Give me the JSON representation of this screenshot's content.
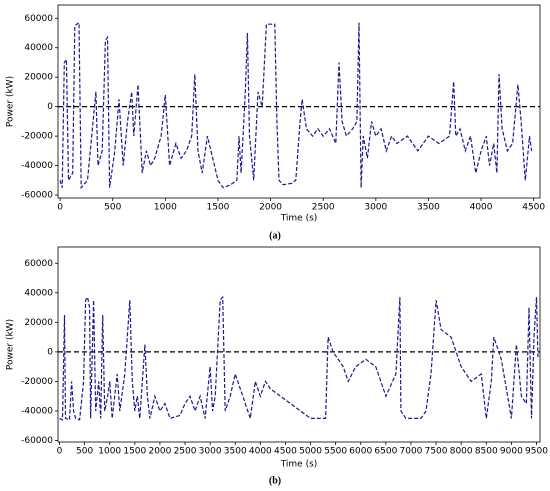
{
  "chart_data": [
    {
      "type": "line",
      "caption": "(a)",
      "xlabel": "Time (s)",
      "ylabel": "Power (kW)",
      "color": "#1a1a8c",
      "hline": 0,
      "xlim": [
        -20,
        4560
      ],
      "xticks": [
        0,
        500,
        1000,
        1500,
        2000,
        2500,
        3000,
        3500,
        4000,
        4500
      ],
      "ylim": [
        -62000,
        69000
      ],
      "yticks": [
        -60000,
        -40000,
        -20000,
        0,
        20000,
        40000,
        60000
      ],
      "x": [
        0,
        20,
        40,
        60,
        80,
        120,
        140,
        180,
        200,
        260,
        300,
        340,
        360,
        400,
        430,
        450,
        470,
        520,
        560,
        600,
        640,
        680,
        700,
        740,
        780,
        820,
        860,
        900,
        960,
        1000,
        1040,
        1100,
        1150,
        1200,
        1250,
        1280,
        1310,
        1350,
        1400,
        1450,
        1500,
        1550,
        1620,
        1680,
        1700,
        1720,
        1760,
        1780,
        1800,
        1840,
        1880,
        1920,
        1960,
        2040,
        2060,
        2080,
        2120,
        2200,
        2240,
        2280,
        2300,
        2340,
        2400,
        2450,
        2500,
        2560,
        2620,
        2650,
        2680,
        2720,
        2780,
        2820,
        2840,
        2860,
        2880,
        2920,
        2960,
        3000,
        3050,
        3100,
        3150,
        3200,
        3300,
        3400,
        3500,
        3600,
        3700,
        3740,
        3760,
        3800,
        3850,
        3900,
        3950,
        4000,
        4050,
        4080,
        4120,
        4150,
        4170,
        4200,
        4250,
        4300,
        4350,
        4380,
        4420,
        4460,
        4480
      ],
      "values": [
        -50000,
        -55000,
        30000,
        32000,
        -50000,
        -45000,
        55000,
        57000,
        -55000,
        -50000,
        -20000,
        10000,
        -40000,
        -30000,
        45000,
        47000,
        -55000,
        -30000,
        5000,
        -40000,
        -10000,
        10000,
        -20000,
        15000,
        -45000,
        -30000,
        -40000,
        -35000,
        -20000,
        8000,
        -40000,
        -25000,
        -35000,
        -30000,
        -20000,
        22000,
        -30000,
        -45000,
        -20000,
        -35000,
        -50000,
        -55000,
        -53000,
        -50000,
        -20000,
        -45000,
        10000,
        50000,
        -20000,
        -50000,
        10000,
        0,
        56000,
        56000,
        -10000,
        -50000,
        -53000,
        -52000,
        -50000,
        -10000,
        5000,
        -15000,
        -20000,
        -15000,
        -20000,
        -15000,
        -25000,
        30000,
        -10000,
        -20000,
        -15000,
        -10000,
        57000,
        -55000,
        -20000,
        -35000,
        -10000,
        -20000,
        -15000,
        -30000,
        -20000,
        -25000,
        -20000,
        -30000,
        -20000,
        -25000,
        -20000,
        17000,
        -20000,
        -15000,
        -30000,
        -20000,
        -45000,
        -30000,
        -20000,
        -40000,
        -25000,
        -45000,
        22000,
        -15000,
        -30000,
        -25000,
        15000,
        -10000,
        -50000,
        -20000,
        -30000
      ]
    },
    {
      "type": "line",
      "caption": "(b)",
      "xlabel": "Time (s)",
      "ylabel": "Power (kW)",
      "color": "#1a1a8c",
      "hline": 0,
      "xlim": [
        -30,
        9570
      ],
      "xticks": [
        0,
        500,
        1000,
        1500,
        2000,
        2500,
        3000,
        3500,
        4000,
        4500,
        5000,
        5500,
        6000,
        6500,
        7000,
        7500,
        8000,
        8500,
        9000,
        9500
      ],
      "ylim": [
        -61000,
        71000
      ],
      "yticks": [
        -60000,
        -40000,
        -20000,
        0,
        20000,
        40000,
        60000
      ],
      "x": [
        0,
        60,
        100,
        120,
        200,
        240,
        280,
        320,
        400,
        480,
        520,
        560,
        600,
        620,
        680,
        720,
        780,
        820,
        860,
        900,
        960,
        1000,
        1050,
        1150,
        1200,
        1300,
        1400,
        1450,
        1500,
        1550,
        1600,
        1700,
        1750,
        1800,
        1900,
        2000,
        2100,
        2200,
        2400,
        2500,
        2600,
        2700,
        2800,
        2900,
        3000,
        3050,
        3100,
        3200,
        3250,
        3300,
        3400,
        3500,
        3600,
        3700,
        3800,
        3900,
        4000,
        4100,
        4200,
        4400,
        4600,
        4800,
        5000,
        5300,
        5350,
        5450,
        5550,
        5650,
        5750,
        5900,
        6100,
        6300,
        6500,
        6700,
        6780,
        6800,
        6900,
        7200,
        7300,
        7400,
        7500,
        7600,
        7800,
        8000,
        8200,
        8400,
        8500,
        8600,
        8650,
        8800,
        8900,
        9000,
        9100,
        9200,
        9300,
        9350,
        9400,
        9450,
        9500,
        9530
      ],
      "values": [
        -45000,
        -46000,
        25000,
        -45000,
        -46000,
        -20000,
        -40000,
        -45000,
        -46000,
        -20000,
        35000,
        37000,
        30000,
        -45000,
        35000,
        -40000,
        -20000,
        -45000,
        25000,
        -40000,
        -30000,
        -20000,
        -45000,
        -15000,
        -40000,
        -15000,
        35000,
        -20000,
        -40000,
        -30000,
        -45000,
        5000,
        -30000,
        -45000,
        -30000,
        -40000,
        -35000,
        -45000,
        -43000,
        -35000,
        -30000,
        -40000,
        -30000,
        -45000,
        -10000,
        -40000,
        -30000,
        35000,
        37000,
        -40000,
        -30000,
        -15000,
        -25000,
        -35000,
        -45000,
        -20000,
        -30000,
        -20000,
        -25000,
        -30000,
        -35000,
        -40000,
        -45000,
        -45000,
        10000,
        0,
        -5000,
        -10000,
        -20000,
        -10000,
        -5000,
        -10000,
        -30000,
        -15000,
        37000,
        -40000,
        -45000,
        -45000,
        -40000,
        -15000,
        35000,
        15000,
        10000,
        -10000,
        -20000,
        -15000,
        -45000,
        -20000,
        10000,
        -5000,
        -25000,
        -45000,
        5000,
        -30000,
        -35000,
        30000,
        -45000,
        10000,
        37000,
        -5000
      ]
    }
  ]
}
